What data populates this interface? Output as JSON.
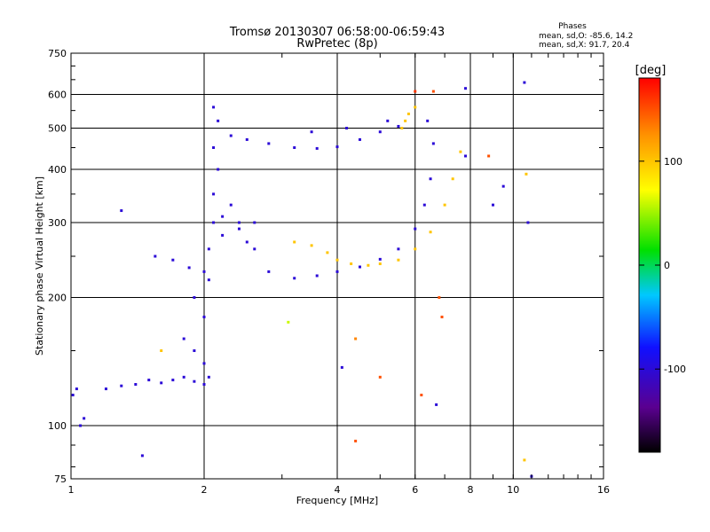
{
  "chart_data": {
    "type": "scatter",
    "title": "Tromsø 20130307 06:58:00-06:59:43",
    "subtitle": "RwPretec (8p)",
    "xlabel": "Frequency [MHz]",
    "ylabel": "Stationary phase Virtual Height [km]",
    "x_scale": "log",
    "y_scale": "log",
    "xlim": [
      1,
      16
    ],
    "ylim": [
      75,
      750
    ],
    "x_ticks": [
      1,
      2,
      4,
      6,
      8,
      10,
      16
    ],
    "y_ticks": [
      75,
      100,
      200,
      300,
      400,
      500,
      600,
      750
    ],
    "grid": true,
    "stats": {
      "heading": "Phases",
      "line_o": "mean, sd,O: -85.6, 14.2",
      "line_x": "mean, sd,X:  91.7, 20.4"
    },
    "colorbar": {
      "label": "[deg]",
      "range": [
        -180,
        180
      ],
      "ticks": [
        {
          "value": 100,
          "label": "100"
        },
        {
          "value": 0,
          "label": "0"
        },
        {
          "value": -100,
          "label": "-100"
        }
      ],
      "colormap": "rainbow: black, purple, blue, cyan, green, yellow, orange, red"
    },
    "series": [
      {
        "trace": "low-height-branch",
        "points": [
          [
            1.01,
            118,
            -100
          ],
          [
            1.03,
            122,
            -100
          ],
          [
            1.05,
            100,
            -100
          ],
          [
            1.07,
            104,
            -100
          ],
          [
            1.2,
            122,
            -100
          ],
          [
            1.3,
            124,
            -100
          ],
          [
            1.4,
            125,
            -100
          ],
          [
            1.5,
            128,
            -100
          ],
          [
            1.6,
            126,
            -100
          ],
          [
            1.7,
            128,
            -100
          ],
          [
            1.8,
            130,
            -100
          ],
          [
            1.9,
            127,
            -100
          ],
          [
            2.0,
            125,
            -100
          ],
          [
            2.05,
            130,
            -100
          ]
        ]
      },
      {
        "trace": "o-mode-lower-trace",
        "points": [
          [
            1.55,
            250,
            -100
          ],
          [
            1.7,
            245,
            -100
          ],
          [
            1.85,
            235,
            -100
          ],
          [
            2.0,
            230,
            -100
          ],
          [
            2.05,
            260,
            -100
          ],
          [
            2.1,
            300,
            -100
          ],
          [
            2.2,
            310,
            -100
          ],
          [
            2.4,
            290,
            -100
          ],
          [
            2.6,
            260,
            -100
          ],
          [
            2.8,
            230,
            -100
          ],
          [
            3.2,
            222,
            -100
          ],
          [
            3.6,
            225,
            -100
          ],
          [
            4.0,
            230,
            -100
          ],
          [
            4.5,
            236,
            -100
          ],
          [
            5.0,
            246,
            -100
          ],
          [
            5.5,
            260,
            -100
          ],
          [
            6.0,
            290,
            -100
          ],
          [
            6.3,
            330,
            -100
          ],
          [
            6.5,
            380,
            -100
          ]
        ]
      },
      {
        "trace": "x-mode-lower-trace",
        "points": [
          [
            3.2,
            270,
            100
          ],
          [
            3.5,
            265,
            100
          ],
          [
            3.8,
            255,
            100
          ],
          [
            4.0,
            245,
            100
          ],
          [
            4.3,
            240,
            100
          ],
          [
            4.7,
            238,
            100
          ],
          [
            5.0,
            240,
            100
          ],
          [
            5.5,
            245,
            100
          ],
          [
            6.0,
            260,
            100
          ],
          [
            6.5,
            285,
            100
          ],
          [
            7.0,
            330,
            100
          ],
          [
            7.3,
            380,
            100
          ],
          [
            7.6,
            440,
            100
          ]
        ]
      },
      {
        "trace": "o-mode-upper-trace",
        "points": [
          [
            2.3,
            480,
            -100
          ],
          [
            2.5,
            470,
            -100
          ],
          [
            2.8,
            460,
            -100
          ],
          [
            3.2,
            450,
            -100
          ],
          [
            3.6,
            448,
            -100
          ],
          [
            4.0,
            452,
            -100
          ],
          [
            4.5,
            470,
            -100
          ],
          [
            5.0,
            490,
            -100
          ],
          [
            5.5,
            505,
            -100
          ],
          [
            3.5,
            490,
            -100
          ],
          [
            4.2,
            500,
            -100
          ],
          [
            5.2,
            520,
            -100
          ],
          [
            6.4,
            520,
            -100
          ],
          [
            6.6,
            460,
            -100
          ]
        ]
      },
      {
        "trace": "x-mode-upper-trace",
        "points": [
          [
            5.6,
            500,
            100
          ],
          [
            5.8,
            540,
            100
          ],
          [
            6.0,
            560,
            100
          ],
          [
            5.7,
            520,
            100
          ]
        ]
      },
      {
        "trace": "spread-f-cluster",
        "points": [
          [
            1.9,
            200,
            -100
          ],
          [
            2.0,
            180,
            -100
          ],
          [
            2.05,
            220,
            -100
          ],
          [
            2.1,
            350,
            -100
          ],
          [
            2.15,
            400,
            -100
          ],
          [
            2.1,
            450,
            -100
          ],
          [
            2.15,
            520,
            -100
          ],
          [
            2.2,
            280,
            -100
          ],
          [
            2.3,
            330,
            -100
          ],
          [
            2.4,
            300,
            -100
          ],
          [
            2.5,
            270,
            -100
          ],
          [
            2.6,
            300,
            -100
          ],
          [
            1.8,
            160,
            -100
          ],
          [
            1.9,
            150,
            -100
          ],
          [
            2.0,
            140,
            -100
          ],
          [
            2.1,
            560,
            -100
          ]
        ]
      },
      {
        "trace": "scattered",
        "points": [
          [
            1.3,
            320,
            -100
          ],
          [
            1.6,
            150,
            100
          ],
          [
            1.45,
            85,
            -100
          ],
          [
            4.4,
            160,
            130
          ],
          [
            4.1,
            137,
            -100
          ],
          [
            4.4,
            92,
            150
          ],
          [
            5.0,
            130,
            150
          ],
          [
            6.2,
            118,
            150
          ],
          [
            6.7,
            112,
            -100
          ],
          [
            6.8,
            200,
            150
          ],
          [
            6.9,
            180,
            150
          ],
          [
            7.8,
            430,
            -100
          ],
          [
            8.8,
            430,
            150
          ],
          [
            9.5,
            365,
            -100
          ],
          [
            10.7,
            390,
            100
          ],
          [
            10.8,
            300,
            -100
          ],
          [
            10.6,
            83,
            100
          ],
          [
            11.0,
            76,
            -100
          ],
          [
            10.6,
            640,
            -100
          ],
          [
            7.8,
            620,
            -100
          ],
          [
            6.6,
            610,
            150
          ],
          [
            6.0,
            610,
            160
          ],
          [
            9.0,
            330,
            -100
          ],
          [
            3.1,
            175,
            60
          ]
        ]
      }
    ]
  }
}
